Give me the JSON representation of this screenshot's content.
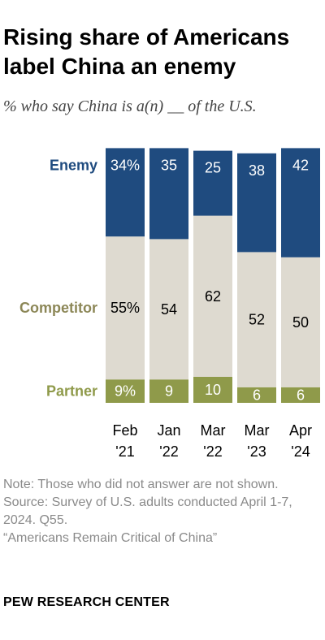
{
  "title": "Rising share of Americans label China an enemy",
  "subtitle": "% who say China is a(n) __ of the U.S.",
  "notes": [
    "Note: Those who did not answer are not shown.",
    "Source: Survey of U.S. adults conducted April 1-7, 2024. Q55.",
    "“Americans Remain Critical of China”"
  ],
  "brand": "PEW RESEARCH CENTER",
  "colors": {
    "enemy": "#1f4b7f",
    "competitor": "#dedad0",
    "partner": "#8f9a4a",
    "enemy_label": "#1f4b7f",
    "competitor_label": "#8c8757",
    "partner_label": "#8f9a4a"
  },
  "chart_data": {
    "type": "bar",
    "stacked": true,
    "categories": [
      [
        "Feb",
        "'21"
      ],
      [
        "Jan",
        "'22"
      ],
      [
        "Mar",
        "'22"
      ],
      [
        "Mar",
        "'23"
      ],
      [
        "Apr",
        "'24"
      ]
    ],
    "series": [
      {
        "name": "Partner",
        "values": [
          9,
          9,
          10,
          6,
          6
        ],
        "labels": [
          "9%",
          "9",
          "10",
          "6",
          "6"
        ]
      },
      {
        "name": "Competitor",
        "values": [
          55,
          54,
          62,
          52,
          50
        ],
        "labels": [
          "55%",
          "54",
          "62",
          "52",
          "50"
        ]
      },
      {
        "name": "Enemy",
        "values": [
          34,
          35,
          25,
          38,
          42
        ],
        "labels": [
          "34%",
          "35",
          "25",
          "38",
          "42"
        ]
      }
    ]
  }
}
